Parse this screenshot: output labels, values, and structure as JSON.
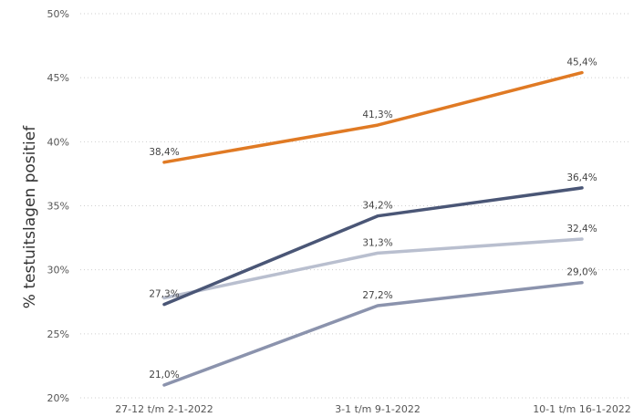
{
  "chart_data": {
    "type": "line",
    "title": "",
    "xlabel": "",
    "ylabel": "% testuitslagen positief",
    "categories": [
      "27-12 t/m 2-1-2022",
      "3-1 t/m 9-1-2022",
      "10-1 t/m 16-1-2022"
    ],
    "ylim": [
      20,
      50
    ],
    "yticks": [
      20,
      25,
      30,
      35,
      40,
      45,
      50
    ],
    "ytick_labels": [
      "20%",
      "25%",
      "30%",
      "35%",
      "40%",
      "45%",
      "50%"
    ],
    "grid": true,
    "legend": "none",
    "series": [
      {
        "color": "#e07a24",
        "values": [
          38.4,
          41.3,
          45.4
        ],
        "labels": [
          "38,4%",
          "41,3%",
          "45,4%"
        ]
      },
      {
        "color": "#4a5676",
        "values": [
          27.3,
          34.2,
          36.4
        ],
        "labels": [
          "27,3%",
          "34,2%",
          "36,4%"
        ]
      },
      {
        "color": "#b9bfcf",
        "values": [
          27.8,
          31.3,
          32.4
        ],
        "labels": [
          "",
          "31,3%",
          "32,4%"
        ]
      },
      {
        "color": "#8b93ad",
        "values": [
          21.0,
          27.2,
          29.0
        ],
        "labels": [
          "21,0%",
          "27,2%",
          "29,0%"
        ]
      }
    ]
  }
}
